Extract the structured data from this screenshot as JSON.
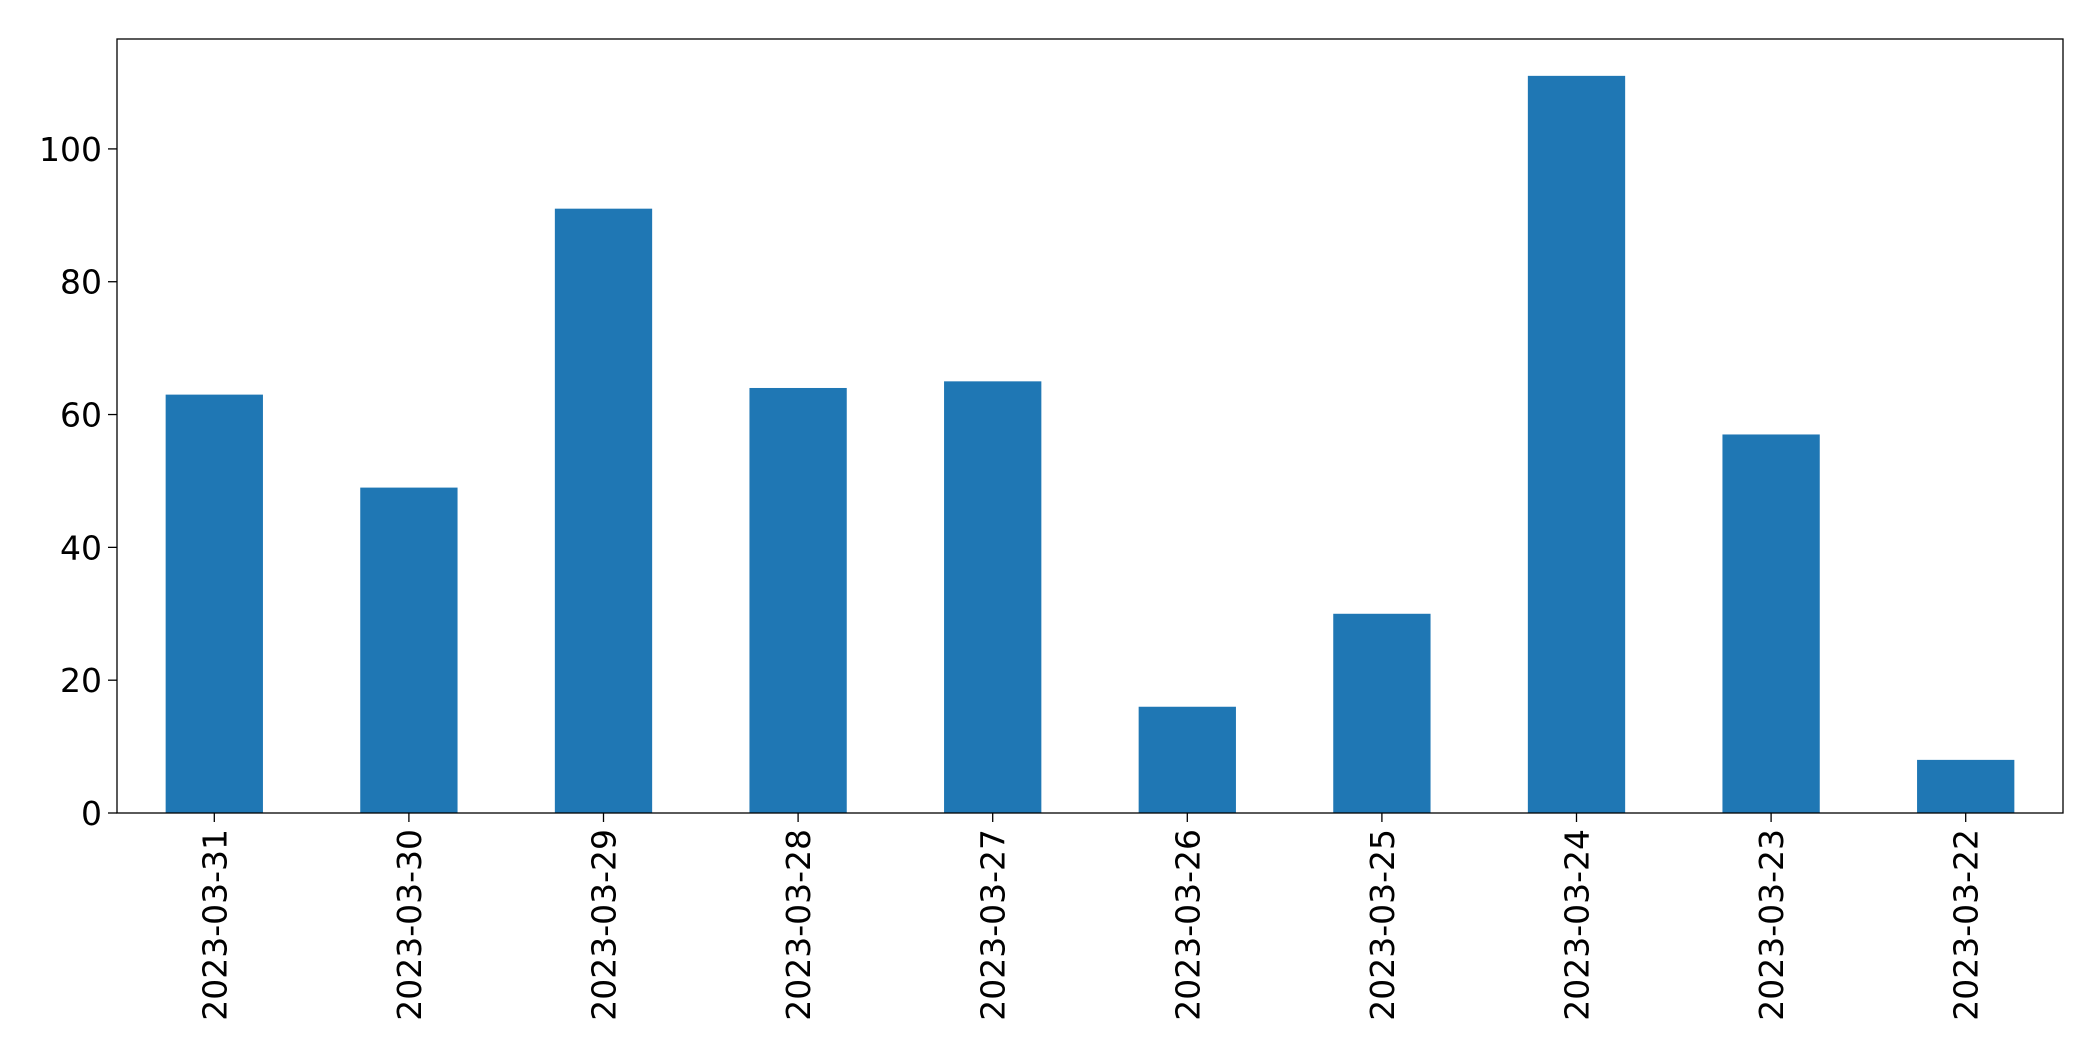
{
  "chart_data": {
    "type": "bar",
    "categories": [
      "2023-03-31",
      "2023-03-30",
      "2023-03-29",
      "2023-03-28",
      "2023-03-27",
      "2023-03-26",
      "2023-03-25",
      "2023-03-24",
      "2023-03-23",
      "2023-03-22"
    ],
    "values": [
      63,
      49,
      91,
      64,
      65,
      16,
      30,
      111,
      57,
      8
    ],
    "color": "#1f77b4",
    "ylim": [
      0,
      116.55
    ],
    "yticks": [
      0,
      20,
      40,
      60,
      80,
      100
    ],
    "grid": false
  }
}
